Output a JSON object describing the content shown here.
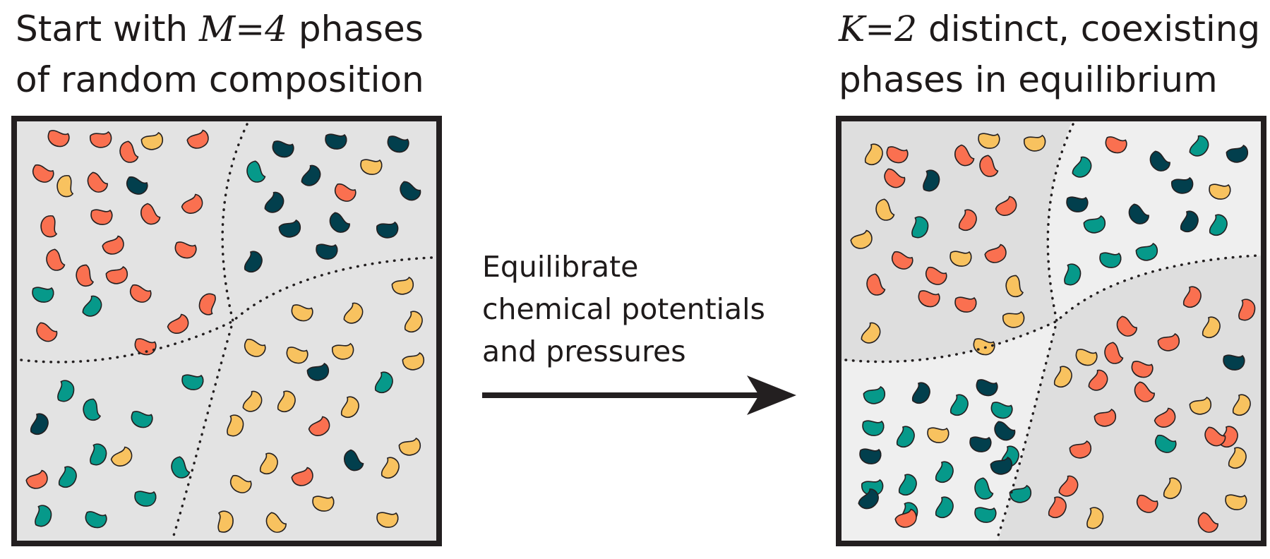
{
  "left_panel": {
    "title_prefix": "Start with",
    "math_symbol": "M",
    "math_equals": "=",
    "math_value": "4",
    "title_suffix": "phases",
    "title_line2": "of random composition"
  },
  "right_panel": {
    "math_symbol": "K",
    "math_equals": "=",
    "math_value": "2",
    "title_suffix": "distinct, coexisting",
    "title_line2": "phases in equilibrium"
  },
  "arrow": {
    "label_lines": [
      "Equilibrate",
      "chemical potentials",
      "and pressures"
    ]
  },
  "colors": {
    "orange_species": "#fa7050",
    "yellow_species": "#f8c25f",
    "teal_species": "#06998a",
    "navy_species": "#023f4d",
    "box_background": "#e3e3e3",
    "light_phase": "#efefef",
    "dark_phase": "#dedede",
    "border": "#231f20"
  }
}
